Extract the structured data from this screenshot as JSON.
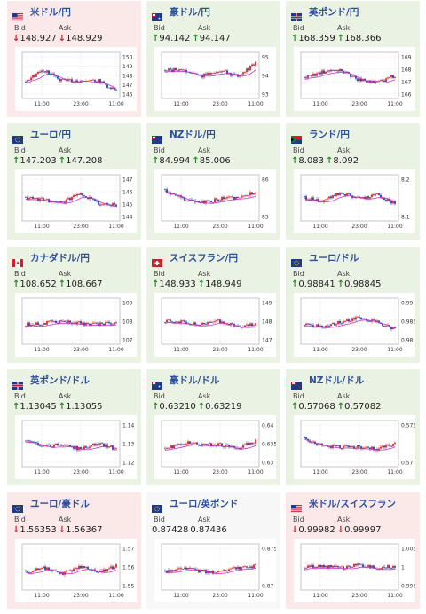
{
  "labels": {
    "bid": "Bid",
    "ask": "Ask"
  },
  "colors": {
    "up_arrow": "#2a8a2a",
    "down_arrow": "#cc2222",
    "candle_up": "#e22222",
    "candle_down": "#1f3fa8",
    "ma_line": "#cc33cc",
    "title": "#2c4f9e"
  },
  "cards": [
    {
      "pair": "米ドル/円",
      "flag": "us",
      "dir": "down",
      "bid": "148.927",
      "ask": "148.929",
      "chart_data": {
        "type": "candlestick",
        "yticks": [
          "150",
          "149",
          "148",
          "147",
          "146"
        ],
        "xticks": [
          "11:00",
          "23:00",
          "11:00"
        ]
      }
    },
    {
      "pair": "豪ドル/円",
      "flag": "au",
      "dir": "up",
      "bid": "94.142",
      "ask": "94.147",
      "chart_data": {
        "type": "candlestick",
        "yticks": [
          "95",
          "94",
          "93"
        ],
        "xticks": [
          "11:00",
          "23:00",
          "11:00"
        ]
      }
    },
    {
      "pair": "英ポンド/円",
      "flag": "gb",
      "dir": "up",
      "bid": "168.359",
      "ask": "168.366",
      "chart_data": {
        "type": "candlestick",
        "yticks": [
          "169",
          "168",
          "167",
          "166"
        ],
        "xticks": [
          "11:00",
          "23:00",
          "11:00"
        ]
      }
    },
    {
      "pair": "ユーロ/円",
      "flag": "eu",
      "dir": "up",
      "bid": "147.203",
      "ask": "147.208",
      "chart_data": {
        "type": "candlestick",
        "yticks": [
          "147",
          "146",
          "145",
          "144"
        ],
        "xticks": [
          "11:00",
          "23:00",
          "11:00"
        ]
      }
    },
    {
      "pair": "NZドル/円",
      "flag": "nz",
      "dir": "up",
      "bid": "84.994",
      "ask": "85.006",
      "chart_data": {
        "type": "candlestick",
        "yticks": [
          "86",
          "85"
        ],
        "xticks": [
          "11:00",
          "23:00",
          "11:00"
        ]
      }
    },
    {
      "pair": "ランド/円",
      "flag": "za",
      "dir": "up",
      "bid": "8.083",
      "ask": "8.092",
      "chart_data": {
        "type": "candlestick",
        "yticks": [
          "8.2",
          "8.1"
        ],
        "xticks": [
          "11:00",
          "23:00",
          "11:00"
        ]
      }
    },
    {
      "pair": "カナダドル/円",
      "flag": "ca",
      "dir": "up",
      "bid": "108.652",
      "ask": "108.667",
      "chart_data": {
        "type": "candlestick",
        "yticks": [
          "109",
          "108",
          "107"
        ],
        "xticks": [
          "11:00",
          "23:00",
          "11:00"
        ]
      }
    },
    {
      "pair": "スイスフラン/円",
      "flag": "ch",
      "dir": "up",
      "bid": "148.933",
      "ask": "148.949",
      "chart_data": {
        "type": "candlestick",
        "yticks": [
          "149",
          "148",
          "147"
        ],
        "xticks": [
          "11:00",
          "23:00",
          "11:00"
        ]
      }
    },
    {
      "pair": "ユーロ/ドル",
      "flag": "eu",
      "dir": "up",
      "bid": "0.98841",
      "ask": "0.98845",
      "chart_data": {
        "type": "candlestick",
        "yticks": [
          "0.99",
          "0.985",
          "0.98"
        ],
        "xticks": [
          "11:00",
          "23:00",
          "11:00"
        ]
      }
    },
    {
      "pair": "英ポンド/ドル",
      "flag": "gb",
      "dir": "up",
      "bid": "1.13045",
      "ask": "1.13055",
      "chart_data": {
        "type": "candlestick",
        "yticks": [
          "1.14",
          "1.13",
          "1.12"
        ],
        "xticks": [
          "11:00",
          "23:00",
          "11:00"
        ]
      }
    },
    {
      "pair": "豪ドル/ドル",
      "flag": "au",
      "dir": "up",
      "bid": "0.63210",
      "ask": "0.63219",
      "chart_data": {
        "type": "candlestick",
        "yticks": [
          "0.64",
          "0.635",
          "0.63"
        ],
        "xticks": [
          "11:00",
          "23:00",
          "11:00"
        ]
      }
    },
    {
      "pair": "NZドル/ドル",
      "flag": "nz",
      "dir": "up",
      "bid": "0.57068",
      "ask": "0.57082",
      "chart_data": {
        "type": "candlestick",
        "yticks": [
          "0.575",
          "0.57"
        ],
        "xticks": [
          "11:00",
          "23:00",
          "11:00"
        ]
      }
    },
    {
      "pair": "ユーロ/豪ドル",
      "flag": "eu",
      "dir": "down",
      "bid": "1.56353",
      "ask": "1.56367",
      "chart_data": {
        "type": "candlestick",
        "yticks": [
          "1.57",
          "1.56",
          "1.55"
        ],
        "xticks": [
          "11:00",
          "23:00",
          "11:00"
        ]
      }
    },
    {
      "pair": "ユーロ/英ポンド",
      "flag": "eu",
      "dir": "flat",
      "bid": "0.87428",
      "ask": "0.87436",
      "chart_data": {
        "type": "candlestick",
        "yticks": [
          "0.875",
          "0.87"
        ],
        "xticks": [
          "11:00",
          "23:00",
          "11:00"
        ]
      }
    },
    {
      "pair": "米ドル/スイスフラン",
      "flag": "us",
      "dir": "down",
      "bid": "0.99982",
      "ask": "0.99997",
      "chart_data": {
        "type": "candlestick",
        "yticks": [
          "1.005",
          "1",
          "0.995"
        ],
        "xticks": [
          "11:00",
          "23:00",
          "11:00"
        ]
      }
    }
  ]
}
